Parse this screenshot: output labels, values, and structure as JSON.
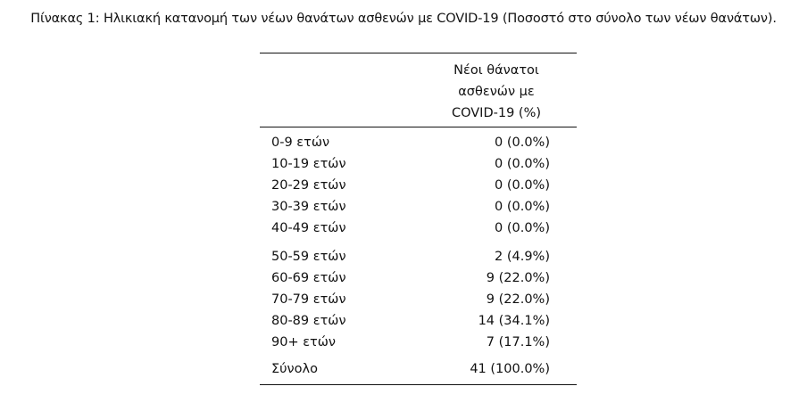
{
  "caption": "Πίνακας 1: Ηλικιακή κατανομή των νέων θανάτων ασθενών με COVID-19 (Ποσοστό στο σύνολο των νέων θανάτων).",
  "table": {
    "header": {
      "age_column": "",
      "deaths_column_lines": [
        "Νέοι θάνατοι",
        "ασθενών με",
        "COVID-19 (%)"
      ]
    },
    "group1": [
      {
        "age": "0-9 ετών",
        "value": "0 (0.0%)"
      },
      {
        "age": "10-19 ετών",
        "value": "0 (0.0%)"
      },
      {
        "age": "20-29 ετών",
        "value": "0 (0.0%)"
      },
      {
        "age": "30-39 ετών",
        "value": "0 (0.0%)"
      },
      {
        "age": "40-49 ετών",
        "value": "0 (0.0%)"
      }
    ],
    "group2": [
      {
        "age": "50-59 ετών",
        "value": "2 (4.9%)"
      },
      {
        "age": "60-69 ετών",
        "value": "9 (22.0%)"
      },
      {
        "age": "70-79 ετών",
        "value": "9 (22.0%)"
      },
      {
        "age": "80-89 ετών",
        "value": "14 (34.1%)"
      },
      {
        "age": "90+ ετών",
        "value": "7 (17.1%)"
      }
    ],
    "total": {
      "age": "Σύνολο",
      "value": "41 (100.0%)"
    }
  }
}
